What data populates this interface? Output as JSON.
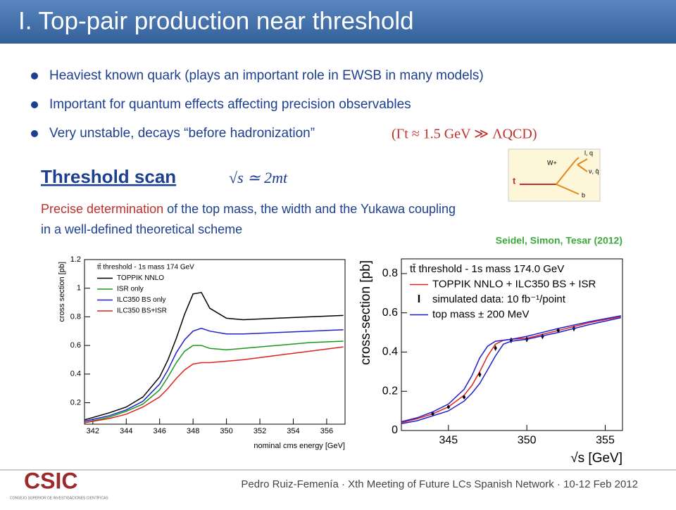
{
  "slide": {
    "title": "I. Top-pair production near threshold",
    "bullets": [
      "Heaviest known quark (plays an important role in EWSB in many models)",
      "Important for quantum effects affecting precision observables",
      "Very unstable, decays “before hadronization”"
    ],
    "formula_width": "(Γt ≈ 1.5 GeV ≫ ΛQCD)",
    "heading": "Threshold scan",
    "formula_threshold": "√s ≃ 2mt",
    "paragraph_highlight": "Precise determination",
    "paragraph_line1": " of the top mass, the width and the Yukawa coupling",
    "paragraph_line2": "in a well-defined theoretical scheme",
    "diagram_labels": [
      "t",
      "W+",
      "l, q",
      "ν, q̄",
      "b"
    ],
    "citation": "Seidel, Simon, Tesar (2012)",
    "logo": "CSIC",
    "logo_subtitle": "CONSEJO SUPERIOR DE INVESTIGACIONES CIENTÍFICAS",
    "footer": "Pedro Ruiz-Femenía · Xth Meeting of Future LCs Spanish Network · 10-12 Feb 2012"
  },
  "chart_data": [
    {
      "type": "line",
      "legend_title": "tt̄ threshold - 1s mass 174 GeV",
      "x_label": "nominal cms energy [GeV]",
      "y_label": "cross section [pb]",
      "x": [
        341.5,
        343,
        344,
        345,
        346,
        346.5,
        347,
        347.5,
        348,
        348.5,
        349,
        350,
        351,
        353,
        355,
        357
      ],
      "series": [
        {
          "name": "TOPPIK NNLO",
          "color": "#000000",
          "values": [
            0.08,
            0.13,
            0.17,
            0.24,
            0.38,
            0.5,
            0.65,
            0.82,
            0.96,
            0.97,
            0.86,
            0.79,
            0.78,
            0.79,
            0.8,
            0.81
          ]
        },
        {
          "name": "ISR only",
          "color": "#1a9a1a",
          "values": [
            0.06,
            0.1,
            0.14,
            0.19,
            0.29,
            0.38,
            0.48,
            0.56,
            0.6,
            0.6,
            0.58,
            0.57,
            0.58,
            0.6,
            0.62,
            0.63
          ]
        },
        {
          "name": "ILC350 BS only",
          "color": "#1f1fcc",
          "values": [
            0.07,
            0.11,
            0.15,
            0.21,
            0.33,
            0.43,
            0.55,
            0.64,
            0.7,
            0.72,
            0.7,
            0.68,
            0.68,
            0.69,
            0.7,
            0.71
          ]
        },
        {
          "name": "ILC350 BS+ISR",
          "color": "#dd2222",
          "values": [
            0.06,
            0.09,
            0.12,
            0.17,
            0.24,
            0.3,
            0.37,
            0.43,
            0.47,
            0.48,
            0.48,
            0.49,
            0.5,
            0.53,
            0.56,
            0.59
          ]
        }
      ],
      "xlim": [
        341.5,
        357.1
      ],
      "ylim": [
        0.05,
        1.2
      ],
      "xticks": [
        342,
        344,
        346,
        348,
        350,
        352,
        354,
        356
      ],
      "yticks": [
        0.2,
        0.4,
        0.6,
        0.8,
        1,
        1.2
      ]
    },
    {
      "type": "line",
      "legend_title": "tt̄ threshold - 1s mass 174.0 GeV",
      "x_label": "√s [GeV]",
      "y_label": "cross-section [pb]",
      "x": [
        342,
        343,
        344,
        345,
        346,
        346.5,
        347,
        347.5,
        348,
        348.5,
        349,
        350,
        352,
        354,
        356
      ],
      "series": [
        {
          "name": "TOPPIK NNLO + ILC350 BS + ISR",
          "color": "#dd2222",
          "values": [
            0.04,
            0.06,
            0.085,
            0.12,
            0.18,
            0.23,
            0.3,
            0.38,
            0.44,
            0.46,
            0.465,
            0.47,
            0.51,
            0.55,
            0.58
          ]
        },
        {
          "name": "simulated data: 10 fb⁻¹/point",
          "color": "#000000",
          "x": [
            344,
            345,
            346,
            347,
            348,
            349,
            350,
            351,
            352,
            353
          ],
          "values": [
            0.085,
            0.12,
            0.17,
            0.285,
            0.42,
            0.46,
            0.465,
            0.48,
            0.51,
            0.52
          ],
          "errors": [
            0.008,
            0.009,
            0.01,
            0.012,
            0.013,
            0.013,
            0.013,
            0.013,
            0.013,
            0.013
          ]
        },
        {
          "name": "top mass ± 200 MeV",
          "color": "#1f1fcc",
          "values": [
            0.045,
            0.065,
            0.095,
            0.135,
            0.21,
            0.28,
            0.37,
            0.43,
            0.455,
            0.46,
            0.465,
            0.48,
            0.52,
            0.555,
            0.585
          ]
        },
        {
          "color": "#1f1fcc",
          "values": [
            0.035,
            0.05,
            0.075,
            0.1,
            0.15,
            0.19,
            0.24,
            0.31,
            0.38,
            0.44,
            0.455,
            0.465,
            0.5,
            0.54,
            0.575
          ]
        }
      ],
      "xlim": [
        342,
        356.1
      ],
      "ylim": [
        0,
        0.875
      ],
      "xticks": [
        345,
        350,
        355
      ],
      "yticks": [
        0,
        0.2,
        0.4,
        0.6,
        0.8
      ]
    }
  ]
}
